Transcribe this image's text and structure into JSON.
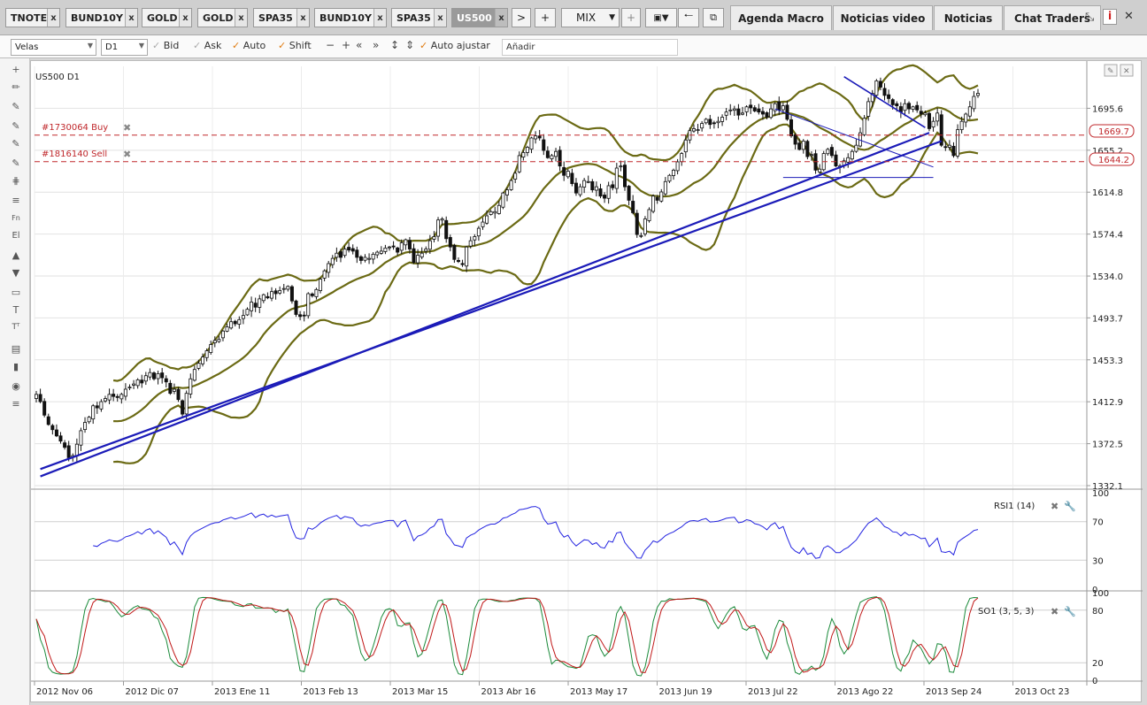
{
  "instrument_tabs": [
    {
      "label": "TNOTE",
      "close": "x",
      "active": false
    },
    {
      "label": "BUND10Y",
      "close": "x",
      "active": false
    },
    {
      "label": "GOLD",
      "close": "x",
      "active": false
    },
    {
      "label": "GOLD",
      "close": "x",
      "active": false
    },
    {
      "label": "SPA35",
      "close": "x",
      "active": false
    },
    {
      "label": "BUND10Y",
      "close": "x",
      "active": false
    },
    {
      "label": "SPA35",
      "close": "x",
      "active": false
    },
    {
      "label": "US500",
      "close": "x",
      "active": true
    }
  ],
  "tab_controls": {
    "next": ">",
    "add": "+",
    "mix": "MIX",
    "mix_add": "+"
  },
  "panel_tabs": [
    "Agenda Macro",
    "Noticias video",
    "Noticias",
    "Chat Traders"
  ],
  "toolbar": {
    "chart_type": "Velas",
    "timeframe": "D1",
    "bid": "Bid",
    "ask": "Ask",
    "auto": "Auto",
    "shift": "Shift",
    "auto_fit": "Auto ajustar",
    "add_placeholder": "Añadir"
  },
  "chart": {
    "symbol_label": "US500 D1",
    "orders": [
      {
        "label": "#1730064 Buy",
        "price": "1669.7",
        "color": "#c0282c"
      },
      {
        "label": "#1816140 Sell",
        "price": "1644.2",
        "color": "#c0282c"
      }
    ],
    "price_ticks": [
      "1695.6",
      "1655.2",
      "1614.8",
      "1574.4",
      "1534.0",
      "1493.7",
      "1453.3",
      "1412.9",
      "1372.5",
      "1332.1"
    ],
    "date_ticks": [
      "2012 Nov 06",
      "2012 Dic 07",
      "2013 Ene 11",
      "2013 Feb 13",
      "2013 Mar 15",
      "2013 Abr 16",
      "2013 May 17",
      "2013 Jun 19",
      "2013 Jul 22",
      "2013 Ago 22",
      "2013 Sep 24",
      "2013 Oct 23"
    ],
    "rsi": {
      "label": "RSI1 (14)",
      "ticks": [
        "100",
        "70",
        "30",
        "0"
      ],
      "color": "#2323e0"
    },
    "stoch": {
      "label": "SO1 (3, 5, 3)",
      "ticks": [
        "100",
        "80",
        "20",
        "0"
      ],
      "main_color": "#1a8a3a",
      "signal_color": "#c01818"
    },
    "colors": {
      "bollinger": "#6b6a14",
      "trendline": "#1b1bb8",
      "candle": "#111111"
    }
  },
  "chart_data": {
    "type": "candlestick",
    "symbol": "US500",
    "timeframe": "D1",
    "ylim": [
      1332.1,
      1736
    ],
    "close": [
      1420,
      1413,
      1400,
      1391,
      1386,
      1380,
      1375,
      1369,
      1359,
      1361,
      1372,
      1385,
      1393,
      1398,
      1409,
      1407,
      1413,
      1416,
      1420,
      1418,
      1417,
      1420,
      1425,
      1427,
      1430,
      1434,
      1431,
      1438,
      1441,
      1435,
      1440,
      1436,
      1432,
      1421,
      1425,
      1415,
      1401,
      1421,
      1435,
      1444,
      1450,
      1456,
      1462,
      1468,
      1472,
      1473,
      1481,
      1485,
      1490,
      1488,
      1492,
      1496,
      1502,
      1509,
      1504,
      1512,
      1516,
      1513,
      1519,
      1517,
      1520,
      1522,
      1524,
      1510,
      1497,
      1495,
      1496,
      1517,
      1515,
      1521,
      1531,
      1539,
      1546,
      1551,
      1556,
      1552,
      1560,
      1559,
      1558,
      1552,
      1549,
      1552,
      1551,
      1555,
      1557,
      1558,
      1561,
      1562,
      1562,
      1557,
      1566,
      1569,
      1560,
      1547,
      1554,
      1556,
      1560,
      1568,
      1572,
      1588,
      1589,
      1570,
      1562,
      1550,
      1548,
      1545,
      1562,
      1568,
      1572,
      1580,
      1586,
      1592,
      1596,
      1596,
      1602,
      1614,
      1617,
      1626,
      1633,
      1650,
      1653,
      1658,
      1667,
      1669,
      1667,
      1655,
      1648,
      1650,
      1654,
      1640,
      1631,
      1635,
      1623,
      1614,
      1620,
      1626,
      1625,
      1617,
      1620,
      1611,
      1609,
      1621,
      1619,
      1638,
      1640,
      1620,
      1607,
      1595,
      1574,
      1573,
      1589,
      1598,
      1611,
      1607,
      1615,
      1625,
      1631,
      1636,
      1644,
      1652,
      1665,
      1674,
      1676,
      1675,
      1681,
      1685,
      1680,
      1681,
      1683,
      1687,
      1692,
      1694,
      1695,
      1689,
      1691,
      1697,
      1696,
      1693,
      1692,
      1690,
      1687,
      1695,
      1700,
      1694,
      1698,
      1685,
      1669,
      1661,
      1656,
      1664,
      1649,
      1651,
      1636,
      1637,
      1652,
      1656,
      1650,
      1640,
      1640,
      1645,
      1648,
      1654,
      1660,
      1672,
      1686,
      1702,
      1710,
      1722,
      1716,
      1708,
      1705,
      1699,
      1698,
      1692,
      1700,
      1695,
      1697,
      1694,
      1690,
      1691,
      1676,
      1683,
      1691,
      1660,
      1658,
      1660,
      1650,
      1675,
      1683,
      1690,
      1697,
      1707,
      1710
    ]
  }
}
